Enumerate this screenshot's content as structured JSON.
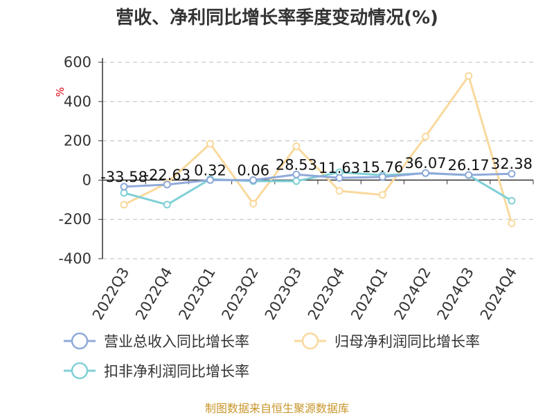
{
  "chart_data": {
    "type": "line",
    "title": "营收、净利同比增长率季度变动情况(%)",
    "ylabel": "%",
    "ylim": [
      -400,
      600
    ],
    "yticks": [
      "600",
      "400",
      "200",
      "0",
      "-200",
      "-400"
    ],
    "categories": [
      "2022Q3",
      "2022Q4",
      "2023Q1",
      "2023Q2",
      "2023Q3",
      "2023Q4",
      "2024Q1",
      "2024Q2",
      "2024Q3",
      "2024Q4"
    ],
    "series": [
      {
        "name": "营业总收入同比增长率",
        "color": "#8fa9d9",
        "values": [
          -33.58,
          -22.63,
          0.32,
          0.06,
          28.53,
          11.63,
          15.76,
          36.07,
          26.17,
          32.38
        ],
        "labels": [
          "-33.58",
          "-22.63",
          "0.32",
          "0.06",
          "28.53",
          "11.63",
          "15.76",
          "36.07",
          "26.17",
          "32.38"
        ]
      },
      {
        "name": "归母净利润同比增长率",
        "color": "#f9d99c",
        "values": [
          -125,
          -15,
          185,
          -120,
          172,
          -55,
          -75,
          222,
          530,
          -220
        ]
      },
      {
        "name": "扣非净利润同比增长率",
        "color": "#7fd0d6",
        "values": [
          -65,
          -125,
          5,
          -5,
          -5,
          40,
          25,
          35,
          25,
          -105
        ]
      }
    ],
    "grid": true,
    "legend_position": "bottom",
    "source": "制图数据来自恒生聚源数据库"
  }
}
